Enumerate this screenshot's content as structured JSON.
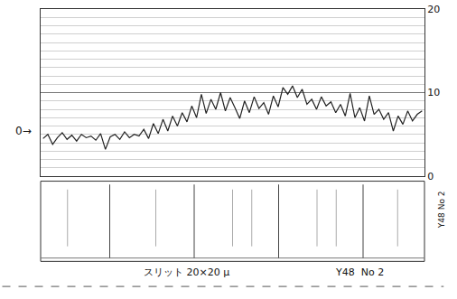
{
  "chart_data": {
    "type": "line",
    "color": "#222222",
    "grid": true,
    "tick_labels": "y",
    "ylim": [
      0,
      20
    ],
    "yticks": [
      0,
      10,
      20
    ],
    "values": [
      4.5,
      5.0,
      3.8,
      4.6,
      5.2,
      4.4,
      4.9,
      4.2,
      5.0,
      4.6,
      4.8,
      4.3,
      5.1,
      3.2,
      4.7,
      5.0,
      4.4,
      5.3,
      4.6,
      5.0,
      4.8,
      5.6,
      4.5,
      6.3,
      5.1,
      6.8,
      5.4,
      7.2,
      6.0,
      7.6,
      6.5,
      8.4,
      7.0,
      9.8,
      7.5,
      9.2,
      8.0,
      10.0,
      7.8,
      9.4,
      8.2,
      6.9,
      9.0,
      7.6,
      9.5,
      8.1,
      8.8,
      7.4,
      9.6,
      8.3,
      10.6,
      9.8,
      10.8,
      9.4,
      10.4,
      8.6,
      9.2,
      8.0,
      9.5,
      8.4,
      8.9,
      7.6,
      8.6,
      7.2,
      9.9,
      7.0,
      8.2,
      6.6,
      9.6,
      7.4,
      8.0,
      6.8,
      7.6,
      5.4,
      7.2,
      6.2,
      7.8,
      6.6,
      7.4,
      7.8
    ],
    "annotations": [
      "0→",
      "スリット 20×20 μ",
      "Y48  No 2",
      "Y48 No 2"
    ]
  }
}
